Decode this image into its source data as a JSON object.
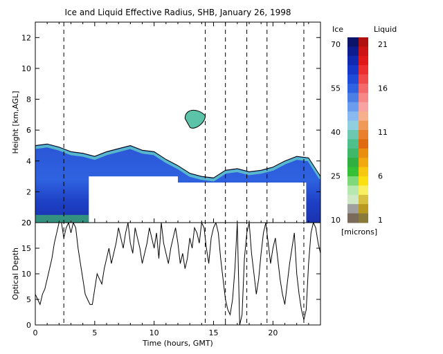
{
  "chart_data": [
    {
      "type": "heatmap",
      "title": "Ice and Liquid Effective Radius, SHB, January 26, 1998",
      "ylabel": "Height [km,AGL]",
      "xlim": [
        0,
        24
      ],
      "ylim": [
        0,
        13
      ],
      "y_ticks": [
        "0",
        "2",
        "4",
        "6",
        "8",
        "10",
        "12"
      ],
      "cloud_top_km": [
        [
          0,
          5.0
        ],
        [
          1,
          5.1
        ],
        [
          2,
          4.9
        ],
        [
          3,
          4.6
        ],
        [
          4,
          4.5
        ],
        [
          5,
          4.3
        ],
        [
          6,
          4.6
        ],
        [
          7,
          4.8
        ],
        [
          8,
          5.0
        ],
        [
          9,
          4.7
        ],
        [
          10,
          4.6
        ],
        [
          11,
          4.1
        ],
        [
          12,
          3.7
        ],
        [
          13,
          3.2
        ],
        [
          14,
          3.0
        ],
        [
          15,
          2.9
        ],
        [
          16,
          3.4
        ],
        [
          17,
          3.5
        ],
        [
          18,
          3.3
        ],
        [
          19,
          3.4
        ],
        [
          20,
          3.6
        ],
        [
          21,
          4.0
        ],
        [
          22,
          4.3
        ],
        [
          23,
          4.2
        ],
        [
          24,
          3.0
        ]
      ],
      "cloud_base_km": [
        [
          0,
          0
        ],
        [
          4.5,
          0
        ],
        [
          4.5,
          3.0
        ],
        [
          12,
          3.0
        ],
        [
          12,
          2.6
        ],
        [
          22.8,
          2.6
        ],
        [
          22.8,
          0
        ],
        [
          24,
          0
        ]
      ],
      "isolated_cloud": {
        "x_range": [
          12.6,
          14.3
        ],
        "height_range_km": [
          6.1,
          7.4
        ]
      },
      "event_lines_hours": [
        2.4,
        14.3,
        16.0,
        17.8,
        19.5,
        22.6
      ],
      "colorbar": {
        "ice_label": "Ice",
        "liquid_label": "Liquid",
        "units": "[microns]",
        "ice_ticks": [
          "70",
          "55",
          "40",
          "25",
          "10"
        ],
        "liquid_ticks": [
          "21",
          "16",
          "11",
          "6",
          "1"
        ],
        "ice_colors": [
          "#0b1466",
          "#0d1c8f",
          "#1128b0",
          "#1637c8",
          "#1e4bd8",
          "#2f62e0",
          "#4b7fe6",
          "#6a9ded",
          "#8ab8f0",
          "#8fcfe0",
          "#6cc8b0",
          "#4fbf8c",
          "#3fb86a",
          "#2fb040",
          "#35c036",
          "#7fd87a",
          "#b6e8b0",
          "#cfe9c6",
          "#a0a0a0",
          "#7a6a5a"
        ],
        "liquid_colors": [
          "#b01010",
          "#cc1414",
          "#e01818",
          "#ec2e2e",
          "#f04a4a",
          "#f46a6a",
          "#f68888",
          "#f8a3a3",
          "#f6b08c",
          "#f09a5a",
          "#e8802e",
          "#e06a10",
          "#e88f10",
          "#f0aa10",
          "#f8c810",
          "#fae010",
          "#f8f060",
          "#d8c040",
          "#b89a20",
          "#8a7a3a"
        ]
      }
    },
    {
      "type": "line",
      "ylabel": "Optical Depth",
      "xlabel": "Time (hours, GMT)",
      "xlim": [
        0,
        24
      ],
      "ylim": [
        0,
        20
      ],
      "x_ticks": [
        "0",
        "5",
        "10",
        "15",
        "20"
      ],
      "y_ticks": [
        "0",
        "5",
        "10",
        "15",
        "20"
      ],
      "series": [
        {
          "x": [
            0.0,
            0.2,
            0.4,
            0.6,
            0.8,
            1.0,
            1.2,
            1.4,
            1.6,
            1.8,
            2.0,
            2.2,
            2.4,
            2.6,
            2.8,
            3.0,
            3.2,
            3.4,
            3.6,
            3.8,
            4.0,
            4.2,
            4.4,
            4.6,
            4.8,
            5.0,
            5.2,
            5.4,
            5.6,
            5.8,
            6.0,
            6.2,
            6.4,
            6.6,
            6.8,
            7.0,
            7.2,
            7.4,
            7.6,
            7.8,
            8.0,
            8.2,
            8.4,
            8.6,
            8.8,
            9.0,
            9.2,
            9.4,
            9.6,
            9.8,
            10.0,
            10.2,
            10.4,
            10.6,
            10.8,
            11.0,
            11.2,
            11.4,
            11.6,
            11.8,
            12.0,
            12.2,
            12.4,
            12.6,
            12.8,
            13.0,
            13.2,
            13.4,
            13.6,
            13.8,
            14.0,
            14.2,
            14.4,
            14.6,
            14.8,
            15.0,
            15.2,
            15.4,
            15.6,
            15.8,
            16.0,
            16.2,
            16.4,
            16.6,
            16.8,
            17.0,
            17.2,
            17.4,
            17.6,
            17.8,
            18.0,
            18.2,
            18.4,
            18.6,
            18.8,
            19.0,
            19.2,
            19.4,
            19.6,
            19.8,
            20.0,
            20.2,
            20.4,
            20.6,
            20.8,
            21.0,
            21.2,
            21.4,
            21.6,
            21.8,
            22.0,
            22.2,
            22.4,
            22.6,
            22.8,
            23.0,
            23.2,
            23.4,
            23.6,
            23.8,
            24.0
          ],
          "values": [
            6,
            5,
            4,
            6,
            7,
            9,
            11,
            13,
            16,
            18,
            20,
            20,
            17,
            19,
            20,
            18,
            20,
            19,
            15,
            12,
            9,
            6,
            5,
            4,
            4,
            7,
            10,
            9,
            8,
            11,
            13,
            15,
            12,
            14,
            16,
            19,
            17,
            15,
            18,
            20,
            16,
            14,
            19,
            17,
            15,
            12,
            14,
            16,
            19,
            17,
            15,
            18,
            13,
            20,
            16,
            14,
            12,
            15,
            17,
            19,
            16,
            12,
            14,
            11,
            13,
            17,
            15,
            19,
            18,
            16,
            20,
            19,
            15,
            12,
            17,
            19,
            20,
            18,
            13,
            9,
            5,
            3,
            2,
            5,
            11,
            20,
            0,
            2,
            13,
            18,
            20,
            14,
            10,
            6,
            9,
            14,
            18,
            20,
            16,
            12,
            15,
            17,
            13,
            9,
            6,
            4,
            8,
            12,
            15,
            18,
            10,
            6,
            3,
            1,
            3,
            12,
            18,
            20,
            19,
            16,
            14
          ]
        }
      ]
    }
  ]
}
